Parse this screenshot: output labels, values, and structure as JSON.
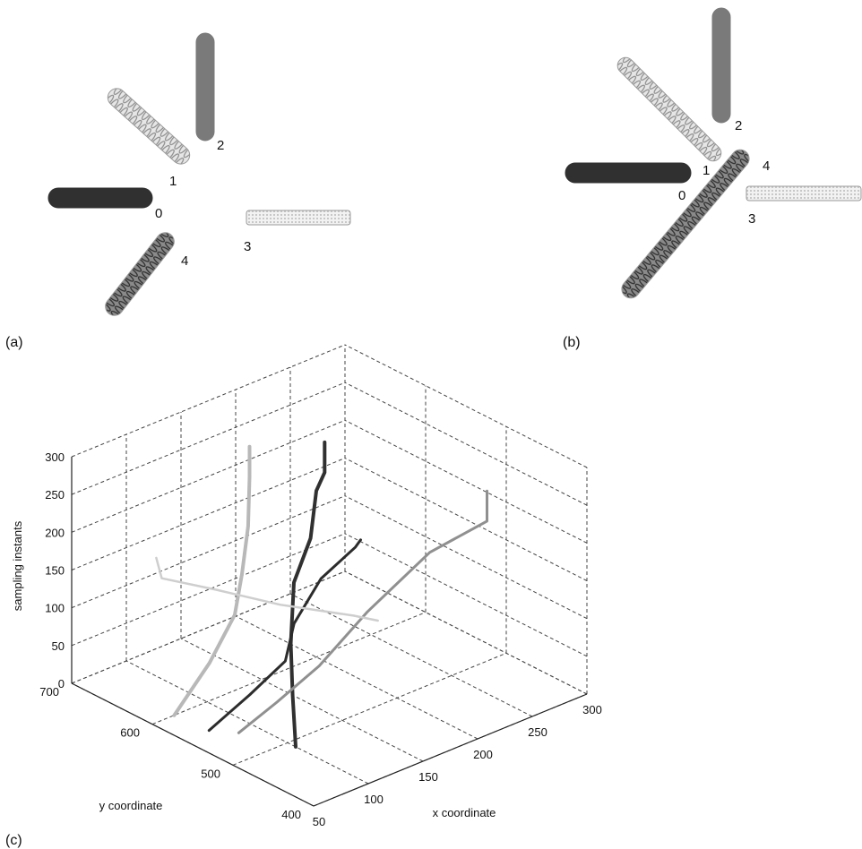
{
  "panels": {
    "a": {
      "label": "(a)",
      "robots": [
        {
          "id": "0",
          "shade": "#303030",
          "pattern": "solid"
        },
        {
          "id": "1",
          "shade": "#b4b4b4",
          "pattern": "rings"
        },
        {
          "id": "2",
          "shade": "#7a7a7a",
          "pattern": "solid"
        },
        {
          "id": "3",
          "shade": "#d6d6d6",
          "pattern": "dotted"
        },
        {
          "id": "4",
          "shade": "#505050",
          "pattern": "rings"
        }
      ]
    },
    "b": {
      "label": "(b)",
      "robots": [
        {
          "id": "0",
          "shade": "#303030",
          "pattern": "solid"
        },
        {
          "id": "1",
          "shade": "#b4b4b4",
          "pattern": "rings"
        },
        {
          "id": "2",
          "shade": "#7a7a7a",
          "pattern": "solid"
        },
        {
          "id": "3",
          "shade": "#d6d6d6",
          "pattern": "dotted"
        },
        {
          "id": "4",
          "shade": "#505050",
          "pattern": "rings"
        }
      ]
    },
    "c": {
      "label": "(c)"
    }
  },
  "chart_data": {
    "type": "line",
    "projection": "3d",
    "xlabel": "x coordinate",
    "ylabel": "y coordinate",
    "zlabel": "sampling instants",
    "xlim": [
      50,
      300
    ],
    "ylim": [
      400,
      700
    ],
    "zlim": [
      0,
      300
    ],
    "xticks": [
      "50",
      "100",
      "150",
      "200",
      "250",
      "300"
    ],
    "yticks": [
      "400",
      "500",
      "600",
      "700"
    ],
    "zticks": [
      "0",
      "50",
      "100",
      "150",
      "200",
      "250",
      "300"
    ],
    "grid": true,
    "series": [
      {
        "color": "#303030",
        "width": 4,
        "points": [
          [
            100,
            490,
            0
          ],
          [
            112,
            510,
            50
          ],
          [
            125,
            530,
            100
          ],
          [
            150,
            560,
            150
          ],
          [
            180,
            580,
            180
          ],
          [
            200,
            600,
            220
          ],
          [
            215,
            610,
            230
          ],
          [
            215,
            610,
            270
          ]
        ]
      },
      {
        "color": "#2c2c2c",
        "width": 3,
        "points": [
          [
            65,
            550,
            10
          ],
          [
            95,
            540,
            45
          ],
          [
            120,
            530,
            80
          ],
          [
            128,
            530,
            125
          ],
          [
            160,
            540,
            160
          ],
          [
            195,
            545,
            178
          ],
          [
            200,
            545,
            185
          ]
        ]
      },
      {
        "color": "#909090",
        "width": 3,
        "points": [
          [
            70,
            520,
            20
          ],
          [
            105,
            520,
            40
          ],
          [
            140,
            515,
            70
          ],
          [
            180,
            510,
            120
          ],
          [
            230,
            500,
            175
          ],
          [
            275,
            490,
            195
          ],
          [
            275,
            490,
            235
          ]
        ]
      },
      {
        "color": "#b8b8b8",
        "width": 4,
        "points": [
          [
            70,
            600,
            0
          ],
          [
            95,
            590,
            60
          ],
          [
            118,
            590,
            110
          ],
          [
            132,
            600,
            150
          ],
          [
            145,
            610,
            200
          ],
          [
            150,
            615,
            260
          ],
          [
            150,
            615,
            300
          ]
        ]
      },
      {
        "color": "#cecece",
        "width": 2.5,
        "points": [
          [
            120,
            690,
            130
          ],
          [
            125,
            690,
            100
          ],
          [
            160,
            670,
            75
          ],
          [
            200,
            645,
            45
          ],
          [
            245,
            615,
            20
          ],
          [
            260,
            605,
            10
          ]
        ]
      }
    ]
  }
}
